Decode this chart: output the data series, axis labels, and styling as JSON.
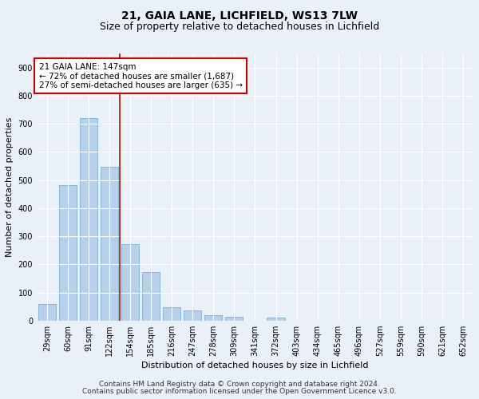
{
  "title1": "21, GAIA LANE, LICHFIELD, WS13 7LW",
  "title2": "Size of property relative to detached houses in Lichfield",
  "xlabel": "Distribution of detached houses by size in Lichfield",
  "ylabel": "Number of detached properties",
  "categories": [
    "29sqm",
    "60sqm",
    "91sqm",
    "122sqm",
    "154sqm",
    "185sqm",
    "216sqm",
    "247sqm",
    "278sqm",
    "309sqm",
    "341sqm",
    "372sqm",
    "403sqm",
    "434sqm",
    "465sqm",
    "496sqm",
    "527sqm",
    "559sqm",
    "590sqm",
    "621sqm",
    "652sqm"
  ],
  "values": [
    60,
    482,
    720,
    547,
    272,
    172,
    47,
    35,
    18,
    14,
    0,
    10,
    0,
    0,
    0,
    0,
    0,
    0,
    0,
    0,
    0
  ],
  "bar_color": "#b8d0ea",
  "bar_edge_color": "#7bafd4",
  "vline_color": "#cc0000",
  "annotation_box_color": "#ffffff",
  "annotation_box_edge": "#cc0000",
  "property_line_label": "21 GAIA LANE: 147sqm",
  "annotation_line1": "← 72% of detached houses are smaller (1,687)",
  "annotation_line2": "27% of semi-detached houses are larger (635) →",
  "ylim": [
    0,
    950
  ],
  "yticks": [
    0,
    100,
    200,
    300,
    400,
    500,
    600,
    700,
    800,
    900
  ],
  "footnote1": "Contains HM Land Registry data © Crown copyright and database right 2024.",
  "footnote2": "Contains public sector information licensed under the Open Government Licence v3.0.",
  "bg_color": "#eaf0f8",
  "plot_bg_color": "#eaf0f8",
  "title_fontsize": 10,
  "subtitle_fontsize": 9,
  "axis_label_fontsize": 8,
  "tick_fontsize": 7,
  "annotation_fontsize": 7.5,
  "footnote_fontsize": 6.5
}
